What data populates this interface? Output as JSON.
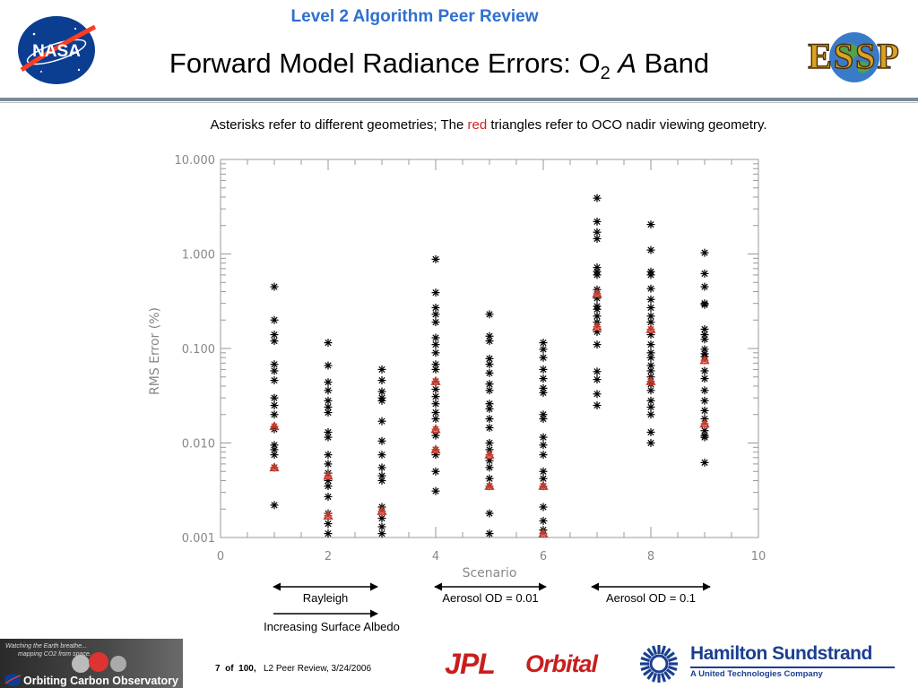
{
  "header": {
    "conference": "Level 2 Algorithm Peer Review",
    "title_main": "Forward Model Radiance Errors: O",
    "title_sub": "2",
    "title_italic": "A",
    "title_end": "Band",
    "left_logo": "NASA",
    "right_logo": "ESSP"
  },
  "caption": {
    "before": "Asterisks refer to different geometries; The ",
    "red_word": "red",
    "after": " triangles refer to OCO nadir viewing geometry.",
    "red_color": "#d32020"
  },
  "chart_data": {
    "type": "scatter",
    "xlabel": "Scenario",
    "ylabel": "RMS Error (%)",
    "xlim": [
      0,
      10
    ],
    "ylim": [
      0.001,
      10
    ],
    "y_scale": "log",
    "x_ticks": [
      "0",
      "2",
      "4",
      "6",
      "8",
      "10"
    ],
    "y_ticks": [
      "0.001",
      "0.010",
      "0.100",
      "1.000",
      "10.000"
    ],
    "axis_color": "#999999",
    "series": [
      {
        "marker": "asterisk",
        "color": "#000000",
        "points": [
          [
            1,
            0.45
          ],
          [
            1,
            0.2
          ],
          [
            1,
            0.14
          ],
          [
            1,
            0.12
          ],
          [
            1,
            0.068
          ],
          [
            1,
            0.058
          ],
          [
            1,
            0.046
          ],
          [
            1,
            0.03
          ],
          [
            1,
            0.025
          ],
          [
            1,
            0.02
          ],
          [
            1,
            0.014
          ],
          [
            1,
            0.0095
          ],
          [
            1,
            0.0085
          ],
          [
            1,
            0.0075
          ],
          [
            1,
            0.0055
          ],
          [
            1,
            0.0022
          ],
          [
            2,
            0.115
          ],
          [
            2,
            0.066
          ],
          [
            2,
            0.044
          ],
          [
            2,
            0.036
          ],
          [
            2,
            0.028
          ],
          [
            2,
            0.024
          ],
          [
            2,
            0.021
          ],
          [
            2,
            0.013
          ],
          [
            2,
            0.0115
          ],
          [
            2,
            0.0075
          ],
          [
            2,
            0.006
          ],
          [
            2,
            0.0048
          ],
          [
            2,
            0.004
          ],
          [
            2,
            0.0035
          ],
          [
            2,
            0.0027
          ],
          [
            2,
            0.0018
          ],
          [
            2,
            0.0014
          ],
          [
            2,
            0.0011
          ],
          [
            3,
            0.06
          ],
          [
            3,
            0.046
          ],
          [
            3,
            0.035
          ],
          [
            3,
            0.03
          ],
          [
            3,
            0.028
          ],
          [
            3,
            0.017
          ],
          [
            3,
            0.0105
          ],
          [
            3,
            0.0075
          ],
          [
            3,
            0.0055
          ],
          [
            3,
            0.0045
          ],
          [
            3,
            0.004
          ],
          [
            3,
            0.0021
          ],
          [
            3,
            0.0016
          ],
          [
            3,
            0.0013
          ],
          [
            3,
            0.0011
          ],
          [
            4,
            0.88
          ],
          [
            4,
            0.39
          ],
          [
            4,
            0.27
          ],
          [
            4,
            0.23
          ],
          [
            4,
            0.19
          ],
          [
            4,
            0.13
          ],
          [
            4,
            0.11
          ],
          [
            4,
            0.09
          ],
          [
            4,
            0.068
          ],
          [
            4,
            0.06
          ],
          [
            4,
            0.045
          ],
          [
            4,
            0.037
          ],
          [
            4,
            0.031
          ],
          [
            4,
            0.026
          ],
          [
            4,
            0.021
          ],
          [
            4,
            0.018
          ],
          [
            4,
            0.012
          ],
          [
            4,
            0.0085
          ],
          [
            4,
            0.0075
          ],
          [
            4,
            0.005
          ],
          [
            4,
            0.0031
          ],
          [
            5,
            0.23
          ],
          [
            5,
            0.135
          ],
          [
            5,
            0.12
          ],
          [
            5,
            0.078
          ],
          [
            5,
            0.068
          ],
          [
            5,
            0.055
          ],
          [
            5,
            0.042
          ],
          [
            5,
            0.036
          ],
          [
            5,
            0.026
          ],
          [
            5,
            0.023
          ],
          [
            5,
            0.018
          ],
          [
            5,
            0.0145
          ],
          [
            5,
            0.01
          ],
          [
            5,
            0.0085
          ],
          [
            5,
            0.0065
          ],
          [
            5,
            0.0055
          ],
          [
            5,
            0.0042
          ],
          [
            5,
            0.0035
          ],
          [
            5,
            0.0018
          ],
          [
            5,
            0.0011
          ],
          [
            6,
            0.115
          ],
          [
            6,
            0.098
          ],
          [
            6,
            0.08
          ],
          [
            6,
            0.06
          ],
          [
            6,
            0.048
          ],
          [
            6,
            0.038
          ],
          [
            6,
            0.034
          ],
          [
            6,
            0.02
          ],
          [
            6,
            0.018
          ],
          [
            6,
            0.0115
          ],
          [
            6,
            0.0095
          ],
          [
            6,
            0.0075
          ],
          [
            6,
            0.005
          ],
          [
            6,
            0.0042
          ],
          [
            6,
            0.0035
          ],
          [
            6,
            0.0021
          ],
          [
            6,
            0.0015
          ],
          [
            6,
            0.0012
          ],
          [
            7,
            3.9
          ],
          [
            7,
            2.2
          ],
          [
            7,
            1.7
          ],
          [
            7,
            1.45
          ],
          [
            7,
            0.72
          ],
          [
            7,
            0.65
          ],
          [
            7,
            0.6
          ],
          [
            7,
            0.42
          ],
          [
            7,
            0.34
          ],
          [
            7,
            0.28
          ],
          [
            7,
            0.26
          ],
          [
            7,
            0.22
          ],
          [
            7,
            0.19
          ],
          [
            7,
            0.15
          ],
          [
            7,
            0.11
          ],
          [
            7,
            0.057
          ],
          [
            7,
            0.047
          ],
          [
            7,
            0.033
          ],
          [
            7,
            0.025
          ],
          [
            8,
            2.05
          ],
          [
            8,
            1.1
          ],
          [
            8,
            0.65
          ],
          [
            8,
            0.6
          ],
          [
            8,
            0.43
          ],
          [
            8,
            0.33
          ],
          [
            8,
            0.27
          ],
          [
            8,
            0.22
          ],
          [
            8,
            0.19
          ],
          [
            8,
            0.14
          ],
          [
            8,
            0.11
          ],
          [
            8,
            0.09
          ],
          [
            8,
            0.08
          ],
          [
            8,
            0.066
          ],
          [
            8,
            0.058
          ],
          [
            8,
            0.05
          ],
          [
            8,
            0.042
          ],
          [
            8,
            0.036
          ],
          [
            8,
            0.028
          ],
          [
            8,
            0.024
          ],
          [
            8,
            0.02
          ],
          [
            8,
            0.013
          ],
          [
            8,
            0.01
          ],
          [
            9,
            1.03
          ],
          [
            9,
            0.62
          ],
          [
            9,
            0.45
          ],
          [
            9,
            0.3
          ],
          [
            9,
            0.29
          ],
          [
            9,
            0.16
          ],
          [
            9,
            0.14
          ],
          [
            9,
            0.125
          ],
          [
            9,
            0.098
          ],
          [
            9,
            0.088
          ],
          [
            9,
            0.082
          ],
          [
            9,
            0.058
          ],
          [
            9,
            0.048
          ],
          [
            9,
            0.036
          ],
          [
            9,
            0.028
          ],
          [
            9,
            0.022
          ],
          [
            9,
            0.018
          ],
          [
            9,
            0.0135
          ],
          [
            9,
            0.012
          ],
          [
            9,
            0.0115
          ],
          [
            9,
            0.0062
          ]
        ]
      },
      {
        "marker": "triangle",
        "color": "#c0392b",
        "points": [
          [
            1,
            0.015
          ],
          [
            1,
            0.0055
          ],
          [
            2,
            0.0045
          ],
          [
            2,
            0.0017
          ],
          [
            3,
            0.0019
          ],
          [
            4,
            0.045
          ],
          [
            4,
            0.014
          ],
          [
            4,
            0.0085
          ],
          [
            5,
            0.0075
          ],
          [
            5,
            0.0035
          ],
          [
            6,
            0.0035
          ],
          [
            6,
            0.0011
          ],
          [
            7,
            0.38
          ],
          [
            7,
            0.17
          ],
          [
            8,
            0.16
          ],
          [
            8,
            0.045
          ],
          [
            9,
            0.075
          ],
          [
            9,
            0.016
          ]
        ]
      }
    ]
  },
  "ranges": {
    "rayleigh": "Rayleigh",
    "aerosol_001": "Aerosol OD = 0.01",
    "aerosol_01": "Aerosol OD = 0.1",
    "albedo": "Increasing Surface Albedo"
  },
  "footer": {
    "page_num": "7",
    "of_word": "of",
    "page_total": "100,",
    "page_info": "L2 Peer Review, 3/24/2006",
    "oco_tagline_1": "Watching the Earth breathe...",
    "oco_tagline_2": "mapping CO2 from space.",
    "oco_name": "Orbiting Carbon Observatory",
    "partner_jpl": "JPL",
    "partner_orbital": "Orbital",
    "partner_hs": "Hamilton Sundstrand",
    "partner_hs_sub": "A United Technologies Company"
  }
}
